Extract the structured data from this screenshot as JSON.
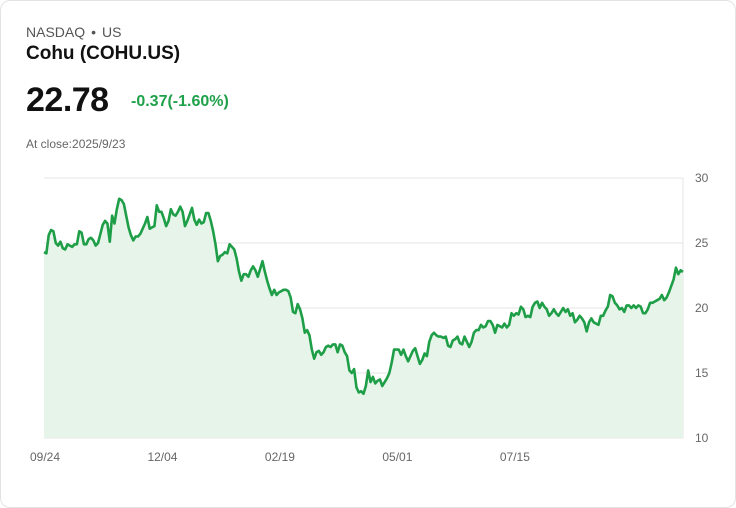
{
  "header": {
    "exchange": "NASDAQ",
    "separator": "•",
    "region": "US",
    "name": "Cohu (COHU.US)",
    "price": "22.78",
    "change": "-0.37(-1.60%)",
    "close_label": "At close:2025/9/23"
  },
  "colors": {
    "line": "#1e9e47",
    "fill": "#e6f4ea",
    "change": "#1fa14b"
  },
  "chart_data": {
    "type": "area",
    "title": "",
    "xlabel": "",
    "ylabel": "",
    "ylim": [
      10,
      30
    ],
    "yticks": [
      "30",
      "25",
      "20",
      "15",
      "10"
    ],
    "xtick_labels": [
      "09/24",
      "12/04",
      "02/19",
      "05/01",
      "07/15"
    ],
    "xtick_index": [
      0,
      50,
      100,
      150,
      200
    ],
    "grid": true,
    "series": [
      {
        "values": [
          24.3,
          24.2,
          25.6,
          26.0,
          25.9,
          25.0,
          24.8,
          25.1,
          24.6,
          24.5,
          24.9,
          24.8,
          24.7,
          24.9,
          24.9,
          25.9,
          25.8,
          24.9,
          24.9,
          25.3,
          25.4,
          25.2,
          24.8,
          25.0,
          25.7,
          26.4,
          26.7,
          26.5,
          25.1,
          27.1,
          26.5,
          27.6,
          28.4,
          28.3,
          28.0,
          27.1,
          26.2,
          25.6,
          25.2,
          25.5,
          25.5,
          25.7,
          26.1,
          26.5,
          27.0,
          26.1,
          26.2,
          26.3,
          27.9,
          27.4,
          27.4,
          26.9,
          26.3,
          26.7,
          27.6,
          27.2,
          27.1,
          27.4,
          27.8,
          27.4,
          26.3,
          26.7,
          27.2,
          27.7,
          26.8,
          26.4,
          26.8,
          26.5,
          26.6,
          27.3,
          27.3,
          26.7,
          25.9,
          24.9,
          23.6,
          24.0,
          24.1,
          24.3,
          24.2,
          24.9,
          24.7,
          24.5,
          23.8,
          22.8,
          22.1,
          22.6,
          22.6,
          22.4,
          22.9,
          23.2,
          22.9,
          22.4,
          23.0,
          23.6,
          22.8,
          22.1,
          21.5,
          21.0,
          21.4,
          21.0,
          21.2,
          21.3,
          21.4,
          21.4,
          21.3,
          20.8,
          19.7,
          19.6,
          20.3,
          19.9,
          19.2,
          18.1,
          18.3,
          17.9,
          16.8,
          16.1,
          16.6,
          16.7,
          16.4,
          16.6,
          17.0,
          17.1,
          17.0,
          17.2,
          17.2,
          16.6,
          17.2,
          17.1,
          16.6,
          16.3,
          15.2,
          15.0,
          15.3,
          13.9,
          13.5,
          13.6,
          13.4,
          14.0,
          15.2,
          14.3,
          14.7,
          14.2,
          14.4,
          14.5,
          14.0,
          14.3,
          14.6,
          15.0,
          15.8,
          16.8,
          16.8,
          16.8,
          16.4,
          16.8,
          16.3,
          15.9,
          16.3,
          16.7,
          16.9,
          16.3,
          15.7,
          16.0,
          16.5,
          16.3,
          17.4,
          17.9,
          18.1,
          17.9,
          17.8,
          17.8,
          17.7,
          17.8,
          17.1,
          17.0,
          17.5,
          17.6,
          17.8,
          17.3,
          17.2,
          17.8,
          17.4,
          17.0,
          17.4,
          18.1,
          18.3,
          18.3,
          18.7,
          18.5,
          18.6,
          19.0,
          19.0,
          18.7,
          18.1,
          18.7,
          18.6,
          18.5,
          18.8,
          18.5,
          18.7,
          19.6,
          19.4,
          19.6,
          19.5,
          20.1,
          19.9,
          19.3,
          19.4,
          19.3,
          20.1,
          20.4,
          20.5,
          20.0,
          20.4,
          20.1,
          19.9,
          19.4,
          19.6,
          19.9,
          19.6,
          19.4,
          19.7,
          20.0,
          19.7,
          19.9,
          19.4,
          19.6,
          18.9,
          19.1,
          19.4,
          19.2,
          18.9,
          18.2,
          18.9,
          19.2,
          18.9,
          18.8,
          18.7,
          19.4,
          19.4,
          19.8,
          20.1,
          21.0,
          20.9,
          20.4,
          20.2,
          19.9,
          20.0,
          19.7,
          20.2,
          20.2,
          20.0,
          20.2,
          20.0,
          20.2,
          20.1,
          19.6,
          19.6,
          19.9,
          20.4,
          20.4,
          20.5,
          20.6,
          20.7,
          21.0,
          20.6,
          20.8,
          21.2,
          21.7,
          22.2,
          23.1,
          22.6,
          22.9,
          22.78
        ]
      }
    ]
  }
}
